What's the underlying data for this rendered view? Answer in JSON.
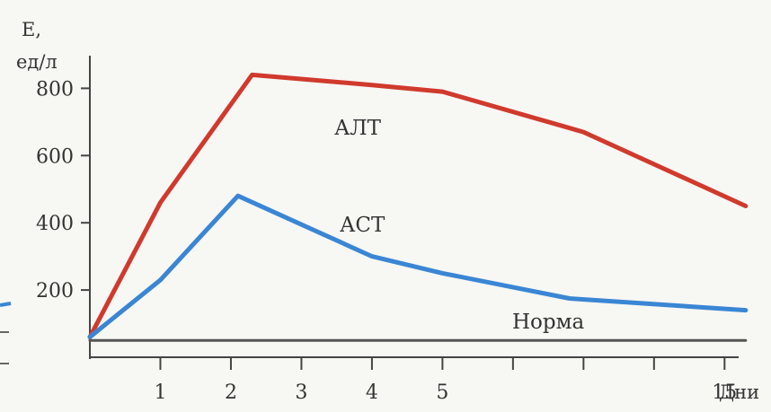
{
  "chart_data": {
    "type": "line",
    "ylabel_line1": "E,",
    "ylabel_line2": "ед/л",
    "xlabel": "Дни",
    "y_ticks": [
      200,
      400,
      600,
      800
    ],
    "x_ticks": [
      {
        "value": 1,
        "label": "1"
      },
      {
        "value": 2,
        "label": "2"
      },
      {
        "value": 3,
        "label": "3"
      },
      {
        "value": 4,
        "label": "4"
      },
      {
        "value": 5,
        "label": "5"
      },
      {
        "value": 6,
        "label": ""
      },
      {
        "value": 7,
        "label": ""
      },
      {
        "value": 8,
        "label": ""
      },
      {
        "value": 9,
        "label": "15"
      }
    ],
    "xlim": [
      0,
      9.2
    ],
    "ylim": [
      0,
      900
    ],
    "series": [
      {
        "name": "АЛТ",
        "color": "#d03a2c",
        "points": [
          [
            0,
            60
          ],
          [
            1,
            460
          ],
          [
            2.3,
            840
          ],
          [
            4,
            810
          ],
          [
            5,
            790
          ],
          [
            7,
            670
          ],
          [
            9.3,
            450
          ]
        ]
      },
      {
        "name": "АСТ",
        "color": "#3a86d4",
        "points": [
          [
            0,
            60
          ],
          [
            1,
            230
          ],
          [
            2.1,
            480
          ],
          [
            4,
            300
          ],
          [
            5,
            250
          ],
          [
            6.8,
            175
          ],
          [
            9.3,
            140
          ]
        ]
      },
      {
        "name": "Норма",
        "color": "#555555",
        "points": [
          [
            0,
            50
          ],
          [
            9.3,
            50
          ]
        ]
      }
    ]
  }
}
